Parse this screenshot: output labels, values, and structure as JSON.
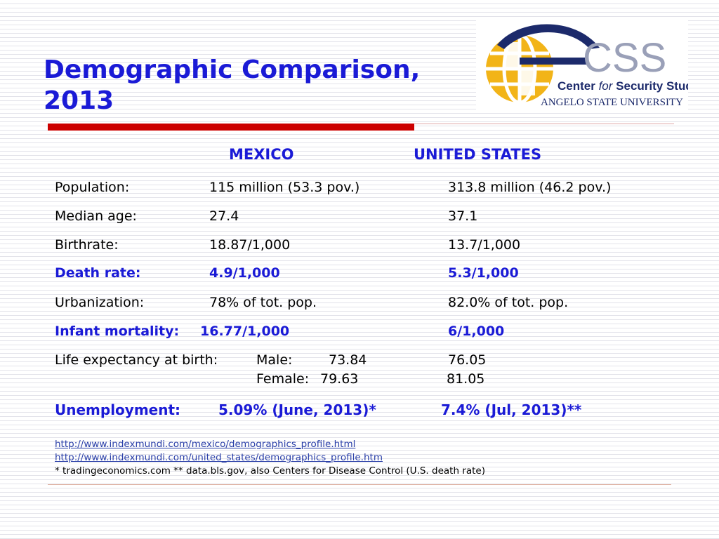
{
  "slide": {
    "title_line1": "Demographic Comparison,",
    "title_line2": "2013"
  },
  "logo": {
    "acronym": "CSS",
    "name_part1": "Center ",
    "name_for": "for",
    "name_part2": " Security Studies",
    "university": "ANGELO STATE UNIVERSITY",
    "colors": {
      "globe_gold": "#f2b418",
      "arc_navy": "#1c2a6b",
      "css_gray": "#9aa0b8"
    }
  },
  "table": {
    "col_mexico": "MEXICO",
    "col_us": "UNITED STATES",
    "rows": [
      {
        "label": "Population:",
        "mexico": "115 million (53.3 pov.)",
        "us": "313.8 million (46.2 pov.)"
      },
      {
        "label": "Median age:",
        "mexico": "27.4",
        "us": "37.1"
      },
      {
        "label": "Birthrate:",
        "mexico": "18.87/1,000",
        "us": "13.7/1,000"
      },
      {
        "label": "Death rate:",
        "mexico": "4.9/1,000",
        "us": "5.3/1,000"
      },
      {
        "label": "Urbanization:",
        "mexico": "78% of tot. pop.",
        "us": "82.0% of tot. pop."
      },
      {
        "label": "Infant mortality:",
        "mexico": "16.77/1,000",
        "us": "6/1,000"
      }
    ],
    "life_expectancy": {
      "label": "Life expectancy at birth:",
      "male_label": "Male:",
      "male_mexico": "73.84",
      "male_us": "76.05",
      "female_label": "Female:",
      "female_mexico": "79.63",
      "female_us": "81.05"
    },
    "unemployment": {
      "label": "Unemployment:",
      "mexico": "5.09% (June, 2013)*",
      "us": "7.4% (Jul, 2013)**"
    }
  },
  "footer": {
    "link1": "http://www.indexmundi.com/mexico/demographics_profile.html",
    "link2": "http://www.indexmundi.com/united_states/demographics_profile.htm",
    "note": "* tradingeconomics.com ** data.bls.gov, also Centers for Disease Control (U.S. death rate)"
  },
  "colors": {
    "title_blue": "#1a1ad6",
    "accent_red": "#cc0000",
    "link_blue": "#2a3fa8"
  }
}
